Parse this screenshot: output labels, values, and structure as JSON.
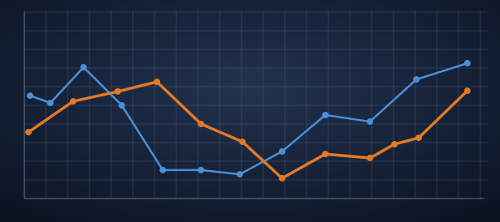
{
  "chart_data": {
    "type": "line",
    "xlim": [
      0,
      100
    ],
    "ylim": [
      0,
      100
    ],
    "grid": true,
    "series": [
      {
        "color": "#4a90d9",
        "x": [
          1.25,
          5.7,
          13,
          21.4,
          30.4,
          38.8,
          47.3,
          56.6,
          66.1,
          75.9,
          86.1,
          97.3
        ],
        "values": [
          56.4,
          52.4,
          72,
          51.1,
          15.6,
          15.6,
          13.3,
          25.8,
          45.8,
          42.2,
          65.3,
          74.2
        ]
      },
      {
        "color": "#e07a26",
        "x": [
          0.9,
          10.7,
          20.5,
          29.1,
          38.8,
          47.9,
          56.6,
          66.1,
          75.9,
          81.3,
          86.6,
          97.3
        ],
        "values": [
          36.4,
          53.3,
          58.7,
          64,
          40.9,
          31.1,
          11.1,
          24.4,
          22.2,
          29.8,
          33.3,
          59.1
        ]
      }
    ]
  }
}
